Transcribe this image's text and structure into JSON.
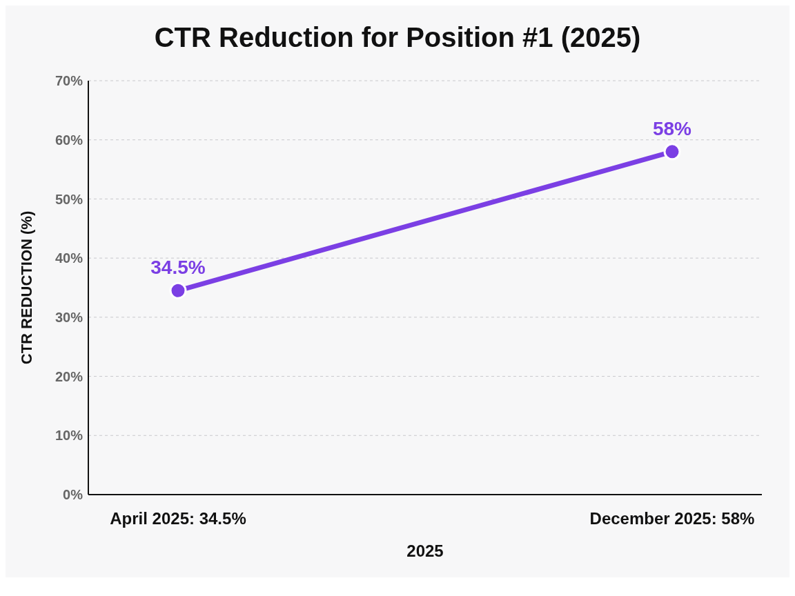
{
  "chart_data": {
    "type": "line",
    "title": "CTR Reduction for Position #1 (2025)",
    "xlabel": "2025",
    "ylabel": "CTR REDUCTION (%)",
    "categories": [
      "April 2025: 34.5%",
      "December 2025: 58%"
    ],
    "series": [
      {
        "color": "#7b3fe4",
        "values": [
          34.5,
          58
        ],
        "value_labels": [
          "34.5%",
          "58%"
        ]
      }
    ],
    "ylim": [
      0,
      70
    ],
    "yticks": [
      {
        "value": 0,
        "label": "0%"
      },
      {
        "value": 10,
        "label": "10%"
      },
      {
        "value": 20,
        "label": "20%"
      },
      {
        "value": 30,
        "label": "30%"
      },
      {
        "value": 40,
        "label": "40%"
      },
      {
        "value": 50,
        "label": "50%"
      },
      {
        "value": 60,
        "label": "60%"
      },
      {
        "value": 70,
        "label": "70%"
      }
    ],
    "grid": "y",
    "marker": "circle",
    "line_style": "solid",
    "legend": false
  }
}
